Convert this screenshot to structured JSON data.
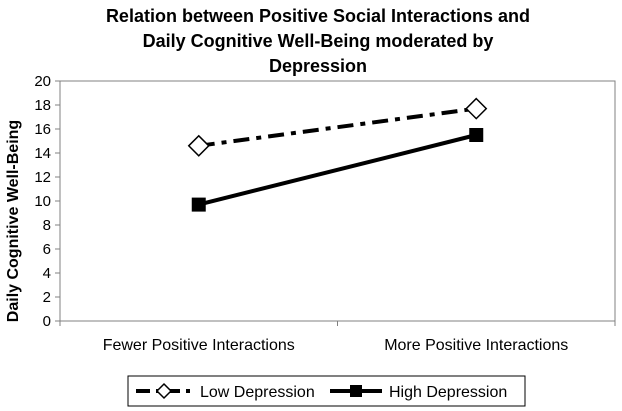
{
  "chart_data": {
    "type": "line",
    "title_lines": [
      "Relation between Positive Social Interactions and",
      "Daily Cognitive Well-Being moderated by",
      "Depression"
    ],
    "xlabel": "",
    "ylabel": "Daily Cognitive Well-Being",
    "ylim": [
      0,
      20
    ],
    "yticks": [
      "0",
      "2",
      "4",
      "6",
      "8",
      "10",
      "12",
      "14",
      "16",
      "18",
      "20"
    ],
    "categories": [
      "Fewer Positive Interactions",
      "More Positive Interactions"
    ],
    "grid": false,
    "legend_position": "bottom",
    "series": [
      {
        "name": "Low Depression",
        "values": [
          14.6,
          17.7
        ],
        "line_style": "dash-dot",
        "marker": "open-diamond"
      },
      {
        "name": "High Depression",
        "values": [
          9.7,
          15.5
        ],
        "line_style": "solid",
        "marker": "filled-square"
      }
    ],
    "colors": {
      "line": "#000000",
      "axis": "#808080",
      "background": "#ffffff"
    }
  }
}
